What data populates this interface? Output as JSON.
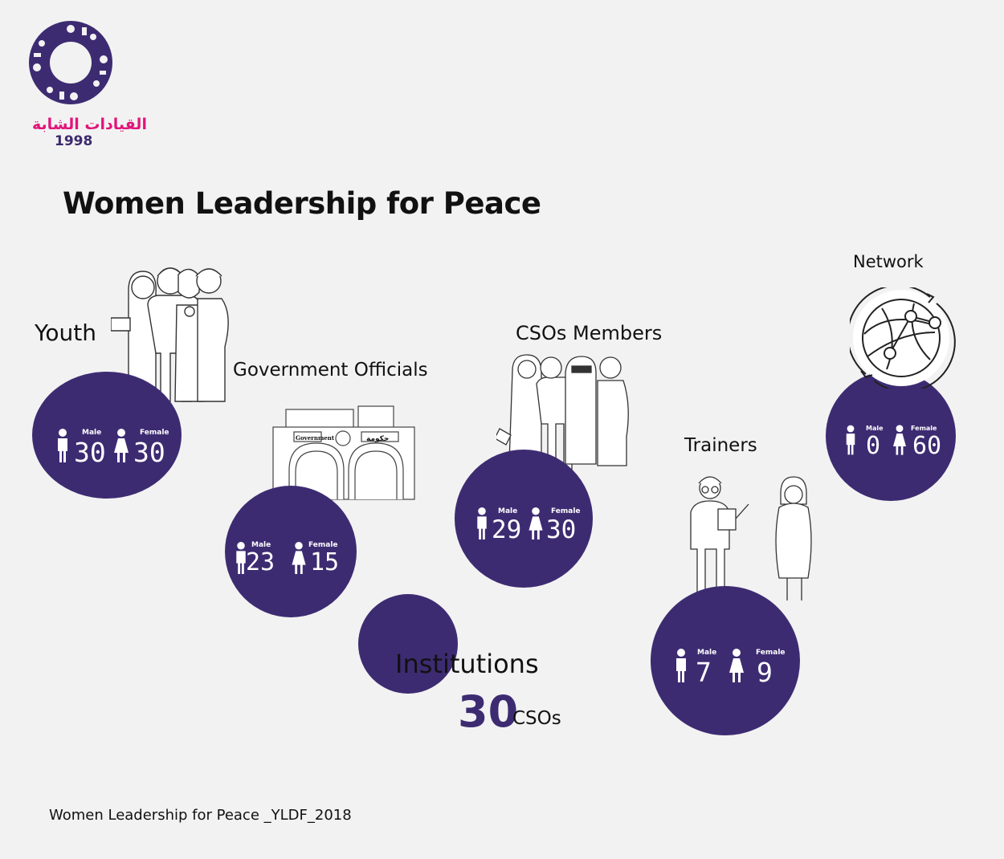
{
  "logo": {
    "arabic": "القيادات الشابة",
    "year": "1998"
  },
  "title": "Women Leadership for Peace",
  "footer": "Women Leadership for Peace _YLDF_2018",
  "colors": {
    "circle": "#3d2b72",
    "logo_pink": "#e0157a",
    "background": "#f2f2f2"
  },
  "groups": {
    "youth": {
      "label": "Youth",
      "male_label": "Male",
      "female_label": "Female",
      "male": "30",
      "female": "30"
    },
    "government": {
      "label": "Government Officials",
      "male_label": "Male",
      "female_label": "Female",
      "male": "23",
      "female": "15",
      "sign_en": "Government",
      "sign_ar": "حكومة"
    },
    "csos": {
      "label": "CSOs Members",
      "male_label": "Male",
      "female_label": "Female",
      "male": "29",
      "female": "30"
    },
    "trainers": {
      "label": "Trainers",
      "male_label": "Male",
      "female_label": "Female",
      "male": "7",
      "female": "9"
    },
    "network": {
      "label": "Network",
      "male_label": "Male",
      "female_label": "Female",
      "male": "0",
      "female": "60"
    }
  },
  "institutions": {
    "label": "Institutions",
    "value": "30",
    "unit": "CSOs"
  },
  "icons": [
    "logo-emblem",
    "male-icon",
    "female-icon",
    "people-group-illustration",
    "government-building-illustration",
    "trainers-illustration",
    "network-icon"
  ]
}
